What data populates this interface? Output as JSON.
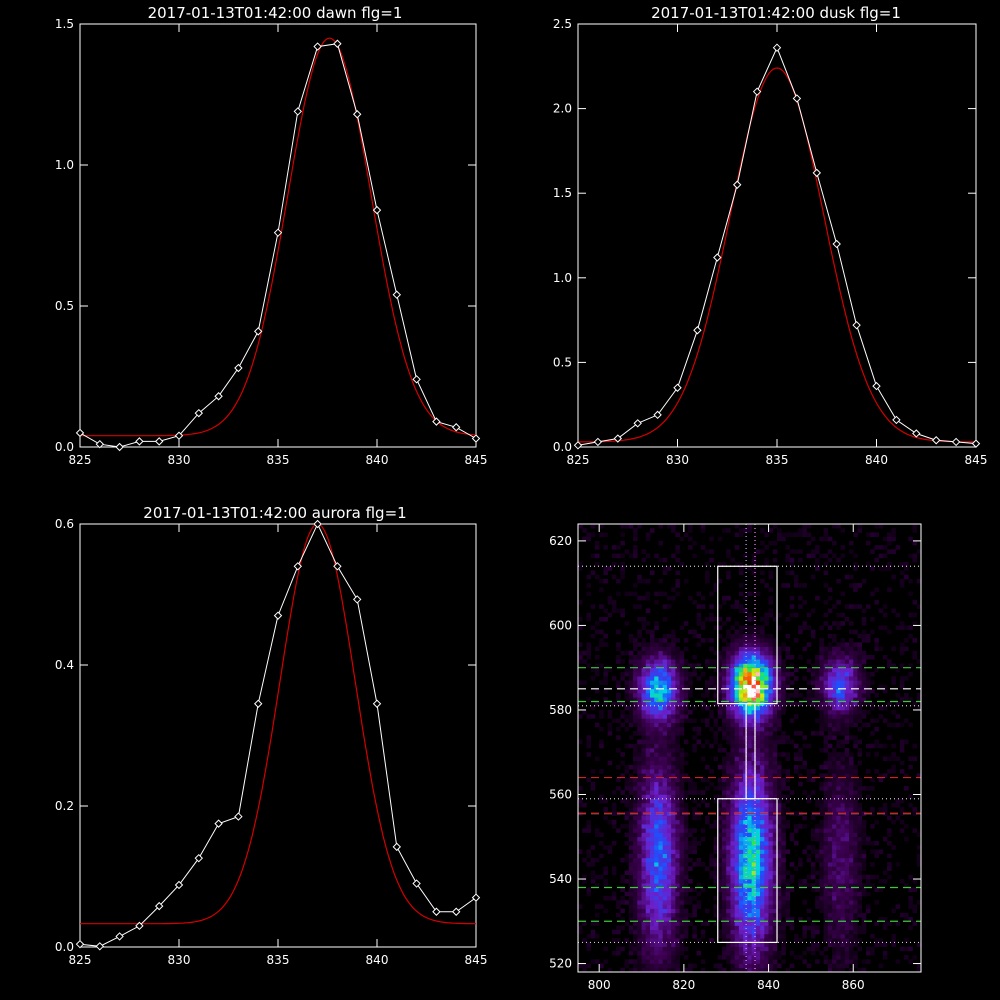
{
  "colors": {
    "background": "#000000",
    "data": "#ffffff",
    "fit": "#d40000",
    "axes": "#ffffff"
  },
  "chart_data": [
    {
      "type": "line",
      "title": "2017-01-13T01:42:00 dawn flg=1",
      "xlim": [
        825,
        845
      ],
      "ylim": [
        0,
        1.5
      ],
      "xticks": [
        "825",
        "830",
        "835",
        "840",
        "845"
      ],
      "yticks": [
        "0.0",
        "0.5",
        "1.0",
        "1.5"
      ],
      "x": [
        825,
        826,
        827,
        828,
        829,
        830,
        831,
        832,
        833,
        834,
        835,
        836,
        837,
        838,
        839,
        840,
        841,
        842,
        843,
        844,
        845
      ],
      "series": [
        {
          "role": "data",
          "marker": "diamond",
          "values": [
            0.05,
            0.01,
            0.0,
            0.02,
            0.02,
            0.04,
            0.12,
            0.18,
            0.28,
            0.41,
            0.76,
            1.19,
            1.42,
            1.43,
            1.18,
            0.84,
            0.54,
            0.24,
            0.09,
            0.07,
            0.03
          ]
        },
        {
          "role": "fit",
          "gauss": {
            "base": 0.04,
            "amp": 1.41,
            "center": 837.6,
            "sigma": 2.1
          }
        }
      ]
    },
    {
      "type": "line",
      "title": "2017-01-13T01:42:00 dusk flg=1",
      "xlim": [
        825,
        845
      ],
      "ylim": [
        0,
        2.5
      ],
      "xticks": [
        "825",
        "830",
        "835",
        "840",
        "845"
      ],
      "yticks": [
        "0.0",
        "0.5",
        "1.0",
        "1.5",
        "2.0",
        "2.5"
      ],
      "x": [
        825,
        826,
        827,
        828,
        829,
        830,
        831,
        832,
        833,
        834,
        835,
        836,
        837,
        838,
        839,
        840,
        841,
        842,
        843,
        844,
        845
      ],
      "series": [
        {
          "role": "data",
          "marker": "diamond",
          "values": [
            0.01,
            0.03,
            0.05,
            0.14,
            0.19,
            0.35,
            0.69,
            1.12,
            1.55,
            2.1,
            2.36,
            2.06,
            1.62,
            1.2,
            0.72,
            0.36,
            0.16,
            0.08,
            0.04,
            0.03,
            0.02
          ]
        },
        {
          "role": "fit",
          "gauss": {
            "base": 0.03,
            "amp": 2.21,
            "center": 835.0,
            "sigma": 2.35
          }
        }
      ]
    },
    {
      "type": "line",
      "title": "2017-01-13T01:42:00 aurora flg=1",
      "xlim": [
        825,
        845
      ],
      "ylim": [
        0,
        0.6
      ],
      "xticks": [
        "825",
        "830",
        "835",
        "840",
        "845"
      ],
      "yticks": [
        "0.0",
        "0.2",
        "0.4",
        "0.6"
      ],
      "x": [
        825,
        826,
        827,
        828,
        829,
        830,
        831,
        832,
        833,
        834,
        835,
        836,
        837,
        838,
        839,
        840,
        841,
        842,
        843,
        844,
        845
      ],
      "series": [
        {
          "role": "data",
          "marker": "diamond",
          "values": [
            0.004,
            0.001,
            0.015,
            0.03,
            0.058,
            0.088,
            0.126,
            0.175,
            0.185,
            0.345,
            0.47,
            0.54,
            0.6,
            0.54,
            0.493,
            0.345,
            0.142,
            0.09,
            0.05,
            0.05,
            0.07
          ]
        },
        {
          "role": "fit",
          "gauss": {
            "base": 0.033,
            "amp": 0.567,
            "center": 837.0,
            "sigma": 1.9
          }
        }
      ]
    },
    {
      "type": "heatmap",
      "title": "",
      "xlim": [
        795,
        876
      ],
      "ylim": [
        518,
        624
      ],
      "xticks": [
        "800",
        "820",
        "840",
        "860"
      ],
      "yticks": [
        "520",
        "540",
        "560",
        "580",
        "600",
        "620"
      ],
      "xtick_values": [
        800,
        820,
        840,
        860
      ],
      "ytick_values": [
        520,
        540,
        560,
        580,
        600,
        620
      ],
      "colormap": "black-purple-blue-cyan-green-yellow-red-white",
      "emission_columns": [
        {
          "center": 814,
          "width": 3.2,
          "blobs": [
            {
              "y": 585,
              "spread": 5,
              "peak": 0.55
            },
            {
              "y": 545,
              "spread": 15,
              "peak": 0.42
            }
          ]
        },
        {
          "center": 836,
          "width": 3.4,
          "blobs": [
            {
              "y": 586,
              "spread": 5,
              "peak": 1.0
            },
            {
              "y": 545,
              "spread": 15,
              "peak": 0.6
            }
          ]
        },
        {
          "center": 857,
          "width": 3.0,
          "blobs": [
            {
              "y": 586,
              "spread": 4.5,
              "peak": 0.4
            },
            {
              "y": 545,
              "spread": 15,
              "peak": 0.16
            }
          ]
        }
      ],
      "boxes": [
        {
          "x0": 828,
          "x1": 842,
          "y0": 581.5,
          "y1": 614
        },
        {
          "x0": 828,
          "x1": 842,
          "y0": 525,
          "y1": 559
        },
        {
          "x0": 834.7,
          "x1": 836.8,
          "y0": 559,
          "y1": 581.5
        }
      ],
      "hlines": [
        {
          "y": 614,
          "color": "#c8c8c8",
          "style": "dotted"
        },
        {
          "y": 590,
          "color": "#3cc83c",
          "style": "dashed"
        },
        {
          "y": 585,
          "color": "#ffffff",
          "style": "dashed"
        },
        {
          "y": 582,
          "color": "#3cc83c",
          "style": "dashed"
        },
        {
          "y": 581,
          "color": "#c8c8c8",
          "style": "dotted"
        },
        {
          "y": 564,
          "color": "#d42020",
          "style": "dashed"
        },
        {
          "y": 559,
          "color": "#c8c8c8",
          "style": "dotted"
        },
        {
          "y": 555.5,
          "color": "#ffffff",
          "style": "dashed"
        },
        {
          "y": 555.5,
          "color": "#d42020",
          "style": "dashed"
        },
        {
          "y": 538,
          "color": "#3cc83c",
          "style": "dashed"
        },
        {
          "y": 530,
          "color": "#3cc83c",
          "style": "dashed"
        },
        {
          "y": 525,
          "color": "#c8c8c8",
          "style": "dotted"
        }
      ],
      "vlines": [
        {
          "x": 834.7,
          "color": "#c8a0ff",
          "style": "dotted"
        },
        {
          "x": 836.8,
          "color": "#ff80ff",
          "style": "dotted"
        }
      ]
    }
  ]
}
